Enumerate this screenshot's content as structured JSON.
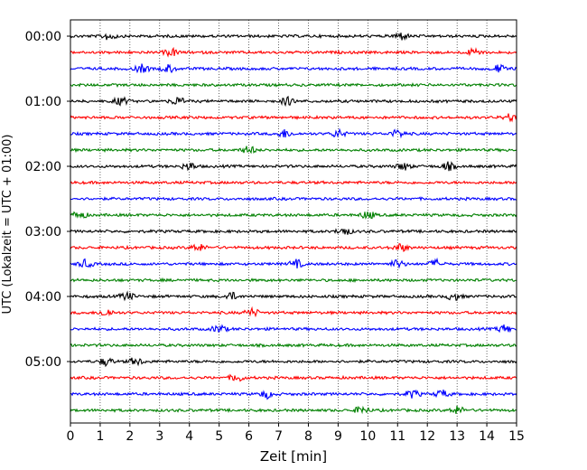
{
  "chart_data": {
    "type": "line",
    "subtype": "helicorder",
    "xlabel": "Zeit  [min]",
    "ylabel": "UTC (Lokalzeit = UTC + 01:00)",
    "xlim": [
      0,
      15
    ],
    "x_ticks": [
      "0",
      "1",
      "2",
      "3",
      "4",
      "5",
      "6",
      "7",
      "8",
      "9",
      "10",
      "11",
      "12",
      "13",
      "14",
      "15"
    ],
    "grid": "vertical dotted at each minute",
    "row_interval_min": 15,
    "row_labels": [
      "00:00",
      "01:00",
      "02:00",
      "03:00",
      "04:00",
      "05:00"
    ],
    "colors": [
      "#000000",
      "#ff0000",
      "#0000ff",
      "#008000"
    ],
    "rows": [
      {
        "start": "00:00",
        "color": "#000000",
        "events_min": [
          1.3,
          11.1
        ]
      },
      {
        "start": "00:15",
        "color": "#ff0000",
        "events_min": [
          3.4,
          13.6
        ]
      },
      {
        "start": "00:30",
        "color": "#0000ff",
        "events_min": [
          2.4,
          3.3,
          14.4
        ]
      },
      {
        "start": "00:45",
        "color": "#008000",
        "events_min": []
      },
      {
        "start": "01:00",
        "color": "#000000",
        "events_min": [
          1.7,
          3.6,
          7.3
        ]
      },
      {
        "start": "01:15",
        "color": "#ff0000",
        "events_min": [
          14.8
        ]
      },
      {
        "start": "01:30",
        "color": "#0000ff",
        "events_min": [
          7.2,
          9.0,
          11.0
        ]
      },
      {
        "start": "01:45",
        "color": "#008000",
        "events_min": [
          6.0
        ]
      },
      {
        "start": "02:00",
        "color": "#000000",
        "events_min": [
          4.0,
          11.2,
          12.7
        ]
      },
      {
        "start": "02:15",
        "color": "#ff0000",
        "events_min": []
      },
      {
        "start": "02:30",
        "color": "#0000ff",
        "events_min": []
      },
      {
        "start": "02:45",
        "color": "#008000",
        "events_min": [
          0.3,
          10.0
        ]
      },
      {
        "start": "03:00",
        "color": "#000000",
        "events_min": [
          9.2
        ]
      },
      {
        "start": "03:15",
        "color": "#ff0000",
        "events_min": [
          4.3,
          11.1
        ]
      },
      {
        "start": "03:30",
        "color": "#0000ff",
        "events_min": [
          0.5,
          7.6,
          11.0,
          12.3
        ]
      },
      {
        "start": "03:45",
        "color": "#008000",
        "events_min": []
      },
      {
        "start": "04:00",
        "color": "#000000",
        "events_min": [
          1.9,
          5.4,
          12.9
        ]
      },
      {
        "start": "04:15",
        "color": "#ff0000",
        "events_min": [
          1.2,
          6.1
        ]
      },
      {
        "start": "04:30",
        "color": "#0000ff",
        "events_min": [
          5.0,
          14.6
        ]
      },
      {
        "start": "04:45",
        "color": "#008000",
        "events_min": []
      },
      {
        "start": "05:00",
        "color": "#000000",
        "events_min": [
          1.2,
          2.2
        ]
      },
      {
        "start": "05:15",
        "color": "#ff0000",
        "events_min": [
          5.6
        ]
      },
      {
        "start": "05:30",
        "color": "#0000ff",
        "events_min": [
          6.6,
          11.5,
          12.5
        ]
      },
      {
        "start": "05:45",
        "color": "#008000",
        "events_min": [
          9.8,
          13.0
        ]
      }
    ]
  }
}
